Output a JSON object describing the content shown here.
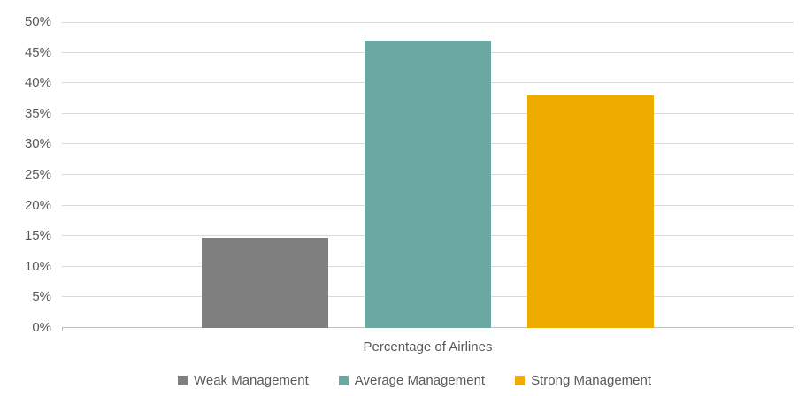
{
  "chart_data": {
    "type": "bar",
    "title": "",
    "categories": [
      "Percentage of Airlines"
    ],
    "series": [
      {
        "name": "Weak Management",
        "value": 14.7,
        "color": "#7F7F7F"
      },
      {
        "name": "Average Management",
        "value": 47.0,
        "color": "#6BA8A2"
      },
      {
        "name": "Strong Management",
        "value": 38.0,
        "color": "#EFAB00"
      }
    ],
    "xlabel": "Percentage of Airlines",
    "ylabel": "",
    "ylim": [
      0,
      50
    ],
    "yticks": [
      {
        "value": 0,
        "label": "0%"
      },
      {
        "value": 5,
        "label": "5%"
      },
      {
        "value": 10,
        "label": "10%"
      },
      {
        "value": 15,
        "label": "15%"
      },
      {
        "value": 20,
        "label": "20%"
      },
      {
        "value": 25,
        "label": "25%"
      },
      {
        "value": 30,
        "label": "30%"
      },
      {
        "value": 35,
        "label": "35%"
      },
      {
        "value": 40,
        "label": "40%"
      },
      {
        "value": 45,
        "label": "45%"
      },
      {
        "value": 50,
        "label": "50%"
      }
    ],
    "grid": true,
    "legend_position": "bottom",
    "colors": {
      "gridline": "#D9D9D9",
      "axis_line": "#BFBFBF",
      "text": "#595959",
      "background": "#FFFFFF"
    }
  }
}
